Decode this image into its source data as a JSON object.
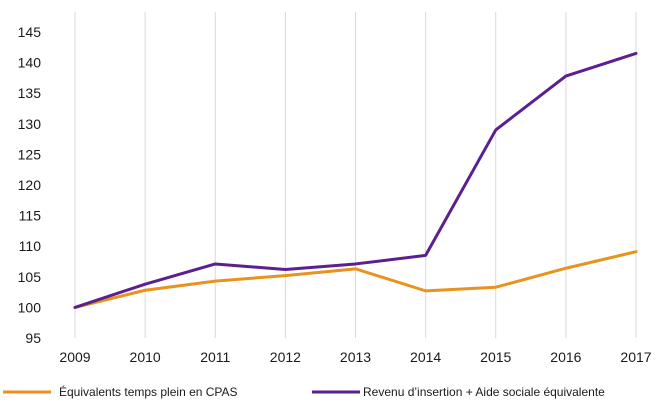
{
  "chart_data": {
    "type": "line",
    "title": "",
    "xlabel": "",
    "ylabel": "",
    "x": [
      "2009",
      "2010",
      "2011",
      "2012",
      "2013",
      "2014",
      "2015",
      "2016",
      "2017"
    ],
    "yticks": [
      95,
      100,
      105,
      110,
      115,
      120,
      125,
      130,
      135,
      140,
      145
    ],
    "ylim": [
      95,
      145
    ],
    "grid": "vertical",
    "legend_position": "bottom",
    "series": [
      {
        "name": "Équivalents temps plein en CPAS",
        "color": "#e8921f",
        "values": [
          100,
          102.8,
          104.3,
          105.2,
          106.3,
          102.7,
          103.3,
          106.4,
          109.1
        ]
      },
      {
        "name": "Revenu d’insertion + Aide sociale équivalente",
        "color": "#5b1f8f",
        "values": [
          100,
          103.8,
          107.1,
          106.2,
          107.1,
          108.5,
          129.0,
          137.8,
          141.5
        ]
      }
    ]
  }
}
